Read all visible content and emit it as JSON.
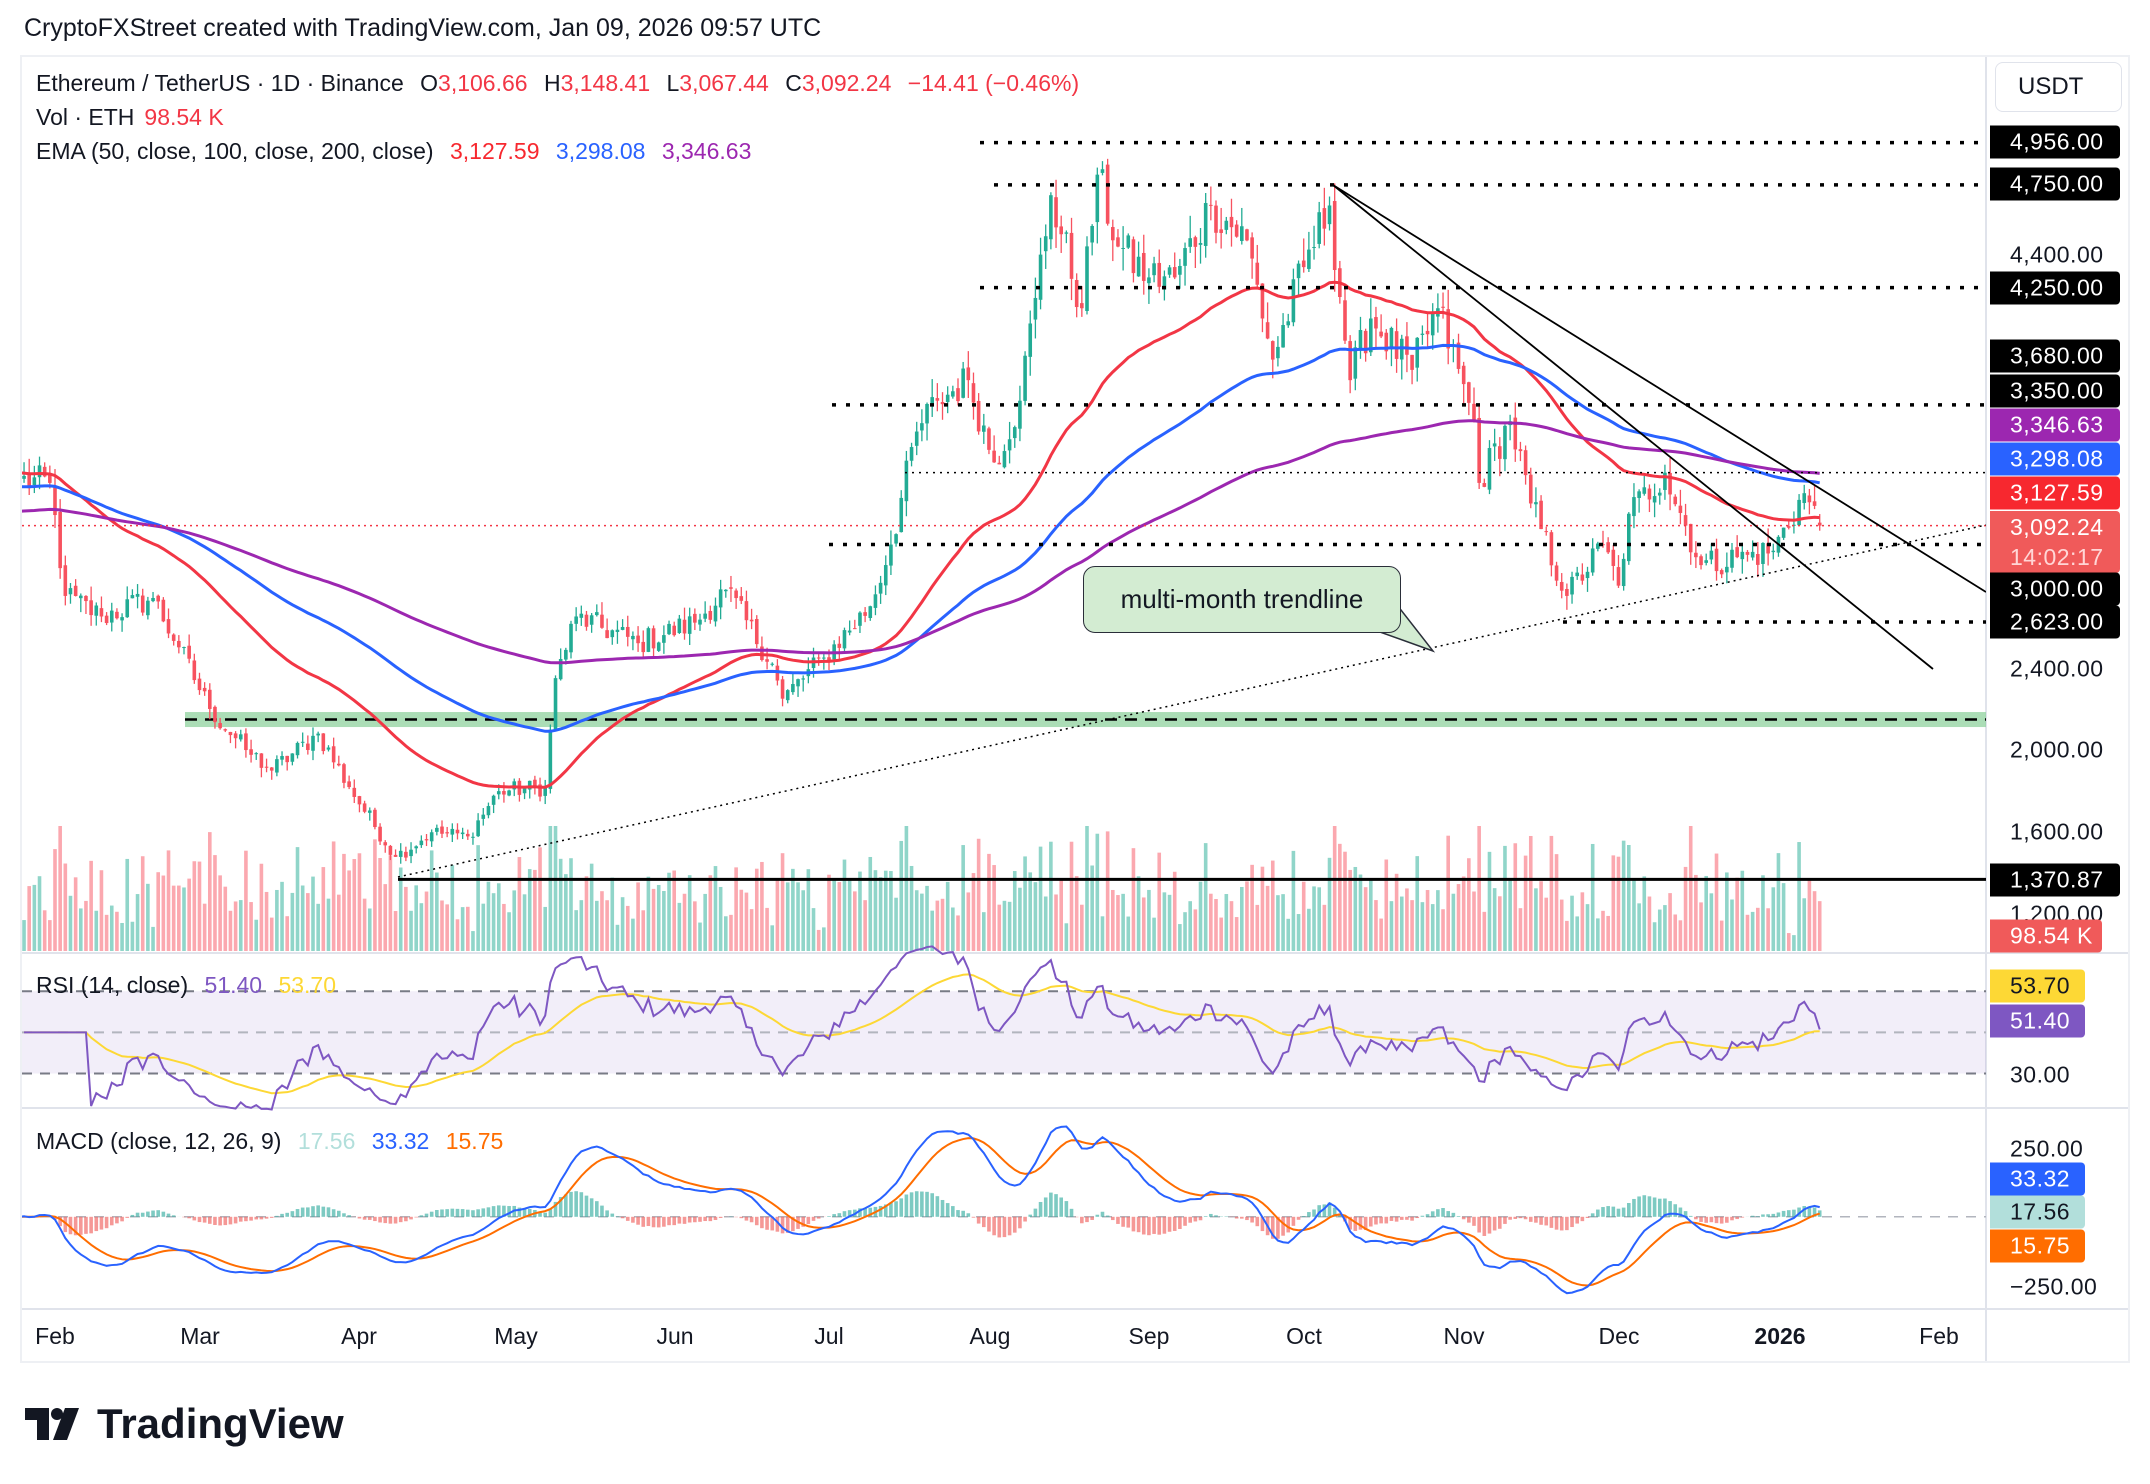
{
  "header": {
    "credit": "CryptoFXStreet created with TradingView.com, Jan 09, 2026 09:57 UTC"
  },
  "legend": {
    "symbol": "Ethereum / TetherUS · 1D · Binance",
    "open_label": "O",
    "open": "3,106.66",
    "high_label": "H",
    "high": "3,148.41",
    "low_label": "L",
    "low": "3,067.44",
    "close_label": "C",
    "close": "3,092.24",
    "change": "−14.41 (−0.46%)",
    "vol_label": "Vol · ETH",
    "vol": "98.54 K",
    "ema_label": "EMA (50, close, 100, close, 200, close)",
    "ema50": "3,127.59",
    "ema100": "3,298.08",
    "ema200": "3,346.63",
    "rsi_label": "RSI (14, close)",
    "rsi": "51.40",
    "rsi_ma": "53.70",
    "macd_label": "MACD (close, 12, 26, 9)",
    "macd_hist": "17.56",
    "macd": "33.32",
    "macd_signal": "15.75"
  },
  "price_axis": {
    "currency_button": "USDT",
    "ticks": [
      "4,400.00",
      "2,400.00",
      "2,000.00",
      "1,600.00",
      "1,200.00"
    ],
    "levels": [
      "4,956.00",
      "4,750.00",
      "4,250.00",
      "3,680.00",
      "3,350.00",
      "3,000.00",
      "2,623.00",
      "1,370.87"
    ],
    "ema200": "3,346.63",
    "ema100": "3,298.08",
    "ema50": "3,127.59",
    "last_price": "3,092.24",
    "countdown": "14:02:17",
    "volume": "98.54 K"
  },
  "rsi_axis": {
    "rsi_ma": "53.70",
    "rsi": "51.40",
    "tick": "30.00"
  },
  "macd_axis": {
    "tick_top": "250.00",
    "macd": "33.32",
    "hist": "17.56",
    "signal": "15.75",
    "tick_bottom": "−250.00"
  },
  "time_axis": [
    "Feb",
    "Mar",
    "Apr",
    "May",
    "Jun",
    "Jul",
    "Aug",
    "Sep",
    "Oct",
    "Nov",
    "Dec",
    "2026",
    "Feb"
  ],
  "annotation": {
    "callout": "multi-month trendline"
  },
  "branding": {
    "logo_text": "TradingView"
  },
  "colors": {
    "up": "#22ab94",
    "down": "#f7525f",
    "ema50": "#f23645",
    "ema100": "#2962ff",
    "ema200": "#9c27b0",
    "rsi": "#7e57c2",
    "rsi_ma": "#fdd835",
    "macd": "#2962ff",
    "signal": "#ff6d00",
    "support_zone": "#8fd19e"
  },
  "chart_data": {
    "type": "candlestick",
    "title": "Ethereum / TetherUS · 1D · Binance",
    "y_scale": "linear",
    "ylim": [
      1100,
      5250
    ],
    "x_range": [
      "2025-01-25",
      "2026-02-05"
    ],
    "approx_closes": [
      [
        "2025-01-25",
        3310
      ],
      [
        "2025-01-31",
        3300
      ],
      [
        "2025-02-03",
        2750
      ],
      [
        "2025-02-10",
        2650
      ],
      [
        "2025-02-20",
        2740
      ],
      [
        "2025-02-25",
        2500
      ],
      [
        "2025-03-03",
        2200
      ],
      [
        "2025-03-10",
        2000
      ],
      [
        "2025-03-15",
        1900
      ],
      [
        "2025-03-24",
        2080
      ],
      [
        "2025-03-30",
        1820
      ],
      [
        "2025-04-08",
        1480
      ],
      [
        "2025-04-15",
        1600
      ],
      [
        "2025-04-22",
        1580
      ],
      [
        "2025-04-28",
        1800
      ],
      [
        "2025-05-07",
        1820
      ],
      [
        "2025-05-09",
        2350
      ],
      [
        "2025-05-13",
        2650
      ],
      [
        "2025-05-25",
        2520
      ],
      [
        "2025-06-05",
        2620
      ],
      [
        "2025-06-11",
        2780
      ],
      [
        "2025-06-20",
        2420
      ],
      [
        "2025-06-22",
        2250
      ],
      [
        "2025-06-30",
        2450
      ],
      [
        "2025-07-09",
        2700
      ],
      [
        "2025-07-13",
        3000
      ],
      [
        "2025-07-18",
        3550
      ],
      [
        "2025-07-22",
        3700
      ],
      [
        "2025-07-28",
        3800
      ],
      [
        "2025-08-02",
        3400
      ],
      [
        "2025-08-07",
        3700
      ],
      [
        "2025-08-10",
        4200
      ],
      [
        "2025-08-13",
        4700
      ],
      [
        "2025-08-19",
        4150
      ],
      [
        "2025-08-22",
        4800
      ],
      [
        "2025-08-26",
        4450
      ],
      [
        "2025-09-01",
        4300
      ],
      [
        "2025-09-06",
        4300
      ],
      [
        "2025-09-13",
        4650
      ],
      [
        "2025-09-20",
        4480
      ],
      [
        "2025-09-25",
        3900
      ],
      [
        "2025-10-01",
        4350
      ],
      [
        "2025-10-06",
        4650
      ],
      [
        "2025-10-10",
        3800
      ],
      [
        "2025-10-14",
        4100
      ],
      [
        "2025-10-22",
        3850
      ],
      [
        "2025-10-27",
        4150
      ],
      [
        "2025-11-03",
        3600
      ],
      [
        "2025-11-04",
        3300
      ],
      [
        "2025-11-10",
        3600
      ],
      [
        "2025-11-14",
        3200
      ],
      [
        "2025-11-21",
        2750
      ],
      [
        "2025-11-28",
        3000
      ],
      [
        "2025-12-01",
        2800
      ],
      [
        "2025-12-03",
        3150
      ],
      [
        "2025-12-10",
        3350
      ],
      [
        "2025-12-17",
        2900
      ],
      [
        "2025-12-26",
        2950
      ],
      [
        "2025-12-31",
        2970
      ],
      [
        "2026-01-06",
        3250
      ],
      [
        "2026-01-09",
        3092.24
      ]
    ],
    "last_candle": {
      "date": "2026-01-09",
      "open": 3106.66,
      "high": 3148.41,
      "low": 3067.44,
      "close": 3092.24,
      "volume": "98.54 K"
    },
    "ema_last": {
      "ema50": 3127.59,
      "ema100": 3298.08,
      "ema200": 3346.63
    },
    "horizontal_levels": [
      4956,
      4750,
      4250,
      3680,
      3350,
      3000,
      2623,
      1370.87
    ],
    "support_zone": [
      2112,
      2185
    ],
    "rsi": {
      "last": 51.4,
      "ma_last": 53.7,
      "bands": [
        30,
        50,
        70
      ]
    },
    "macd": {
      "macd": 33.32,
      "signal": 15.75,
      "hist": 17.56,
      "ylim": [
        -330,
        330
      ]
    }
  }
}
